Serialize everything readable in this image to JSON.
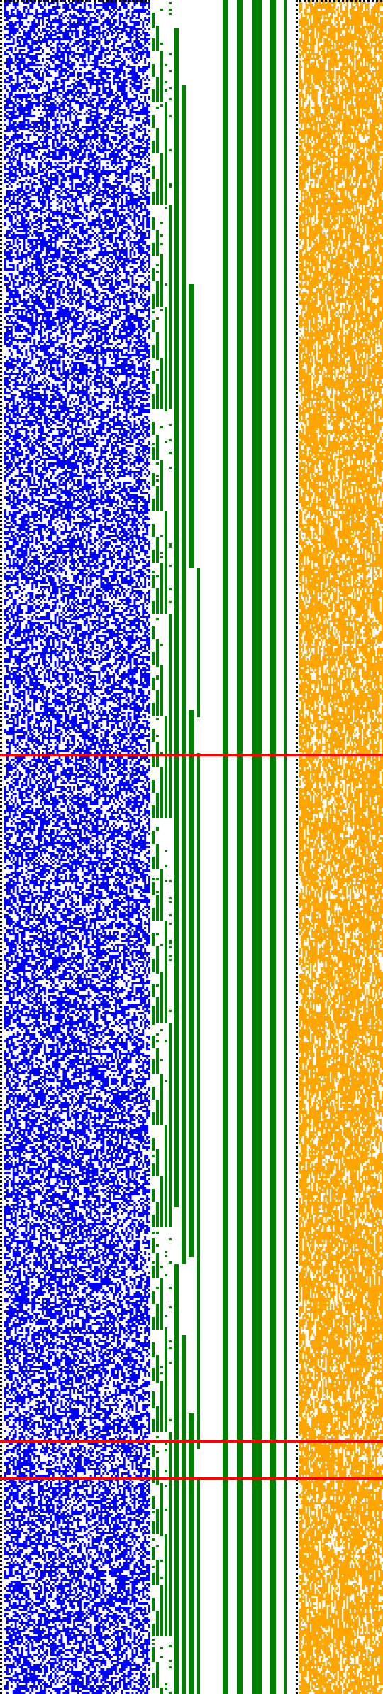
{
  "colors": {
    "background": "#ffffff",
    "left_panel": "#0000ff",
    "middle_panel": "#008000",
    "right_panel": "#ffa500",
    "highlight_row": "#ff0000",
    "dotted_border": "#000000"
  },
  "pattern": {
    "left_grid": {
      "cols": 70,
      "rows": 795,
      "density": 0.55,
      "seed": 11
    },
    "right_grid": {
      "cols": 55,
      "rows": 795,
      "density": 0.5,
      "seed": 29
    },
    "highlighted_rows_fraction": [
      0.445,
      0.85,
      0.872
    ]
  }
}
